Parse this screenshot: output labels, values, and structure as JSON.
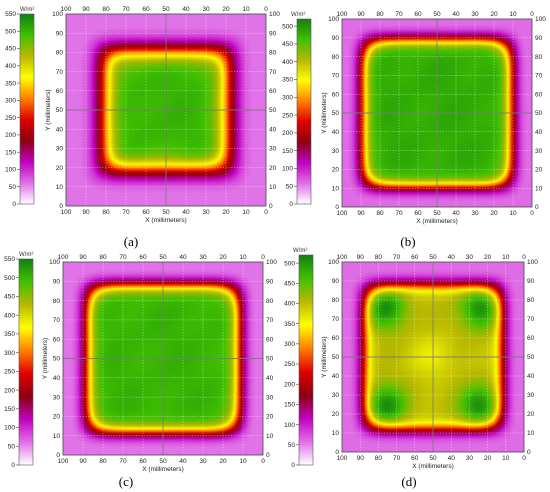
{
  "chart_data": [
    {
      "type": "heatmap",
      "panel_label": "(a)",
      "colorbar_unit": "W/m²",
      "colorbar_ticks": [
        550,
        500,
        450,
        400,
        350,
        300,
        250,
        200,
        150,
        100,
        50,
        0
      ],
      "xlabel": "X (millimeters)",
      "ylabel": "Y (millimeters)",
      "x_ticks": [
        100,
        90,
        80,
        70,
        60,
        50,
        40,
        30,
        20,
        10,
        0
      ],
      "y_ticks": [
        100,
        90,
        80,
        70,
        60,
        50,
        40,
        30,
        20,
        10,
        0
      ],
      "xlim": [
        100,
        0
      ],
      "ylim": [
        0,
        100
      ],
      "clim": [
        0,
        550
      ],
      "field": {
        "center": 500,
        "edge": 60,
        "plateau": 0.62,
        "sharp": 4.0,
        "corners": 0.0,
        "lobes": 0.0
      }
    },
    {
      "type": "heatmap",
      "panel_label": "(b)",
      "colorbar_unit": "W/m²",
      "colorbar_ticks": [
        500,
        450,
        400,
        350,
        300,
        250,
        200,
        150,
        100,
        50,
        0
      ],
      "xlabel": "X (millimeters)",
      "ylabel": "Y (millimeters)",
      "x_ticks": [
        100,
        90,
        80,
        70,
        60,
        50,
        40,
        30,
        20,
        10,
        0
      ],
      "y_ticks": [
        100,
        90,
        80,
        70,
        60,
        50,
        40,
        30,
        20,
        10,
        0
      ],
      "xlim": [
        100,
        0
      ],
      "ylim": [
        0,
        100
      ],
      "clim": [
        0,
        520
      ],
      "field": {
        "center": 480,
        "edge": 60,
        "plateau": 0.78,
        "sharp": 6.0,
        "corners": 0.0,
        "lobes": 0.0
      }
    },
    {
      "type": "heatmap",
      "panel_label": "(c)",
      "colorbar_unit": "W/m²",
      "colorbar_ticks": [
        550,
        500,
        450,
        400,
        350,
        300,
        250,
        200,
        150,
        100,
        50,
        0
      ],
      "xlabel": "X (millimeters)",
      "ylabel": "Y (millimeters)",
      "x_ticks": [
        100,
        90,
        80,
        70,
        60,
        50,
        40,
        30,
        20,
        10,
        0
      ],
      "y_ticks": [
        100,
        90,
        80,
        70,
        60,
        50,
        40,
        30,
        20,
        10,
        0
      ],
      "xlim": [
        100,
        0
      ],
      "ylim": [
        0,
        100
      ],
      "clim": [
        0,
        550
      ],
      "field": {
        "center": 500,
        "edge": 60,
        "plateau": 0.76,
        "sharp": 6.0,
        "corners": 0.0,
        "lobes": 0.0
      }
    },
    {
      "type": "heatmap",
      "panel_label": "(d)",
      "colorbar_unit": "W/m²",
      "colorbar_ticks": [
        500,
        450,
        400,
        350,
        300,
        250,
        200,
        150,
        100,
        50,
        0
      ],
      "xlabel": "X (millimeters)",
      "ylabel": "Y (millimeters)",
      "x_ticks": [
        100,
        90,
        80,
        70,
        60,
        50,
        40,
        30,
        20,
        10,
        0
      ],
      "y_ticks": [
        100,
        90,
        80,
        70,
        60,
        50,
        40,
        30,
        20,
        10,
        0
      ],
      "xlim": [
        100,
        0
      ],
      "ylim": [
        0,
        100
      ],
      "clim": [
        0,
        520
      ],
      "field": {
        "center": 400,
        "edge": 60,
        "plateau": 0.76,
        "sharp": 6.0,
        "corners": 0.0,
        "lobes": 110
      }
    }
  ],
  "colormap": [
    "#ffffff",
    "#e070e8",
    "#c000c0",
    "#8b0010",
    "#e00000",
    "#ff8000",
    "#ffff00",
    "#b8b800",
    "#40c000",
    "#108010"
  ]
}
